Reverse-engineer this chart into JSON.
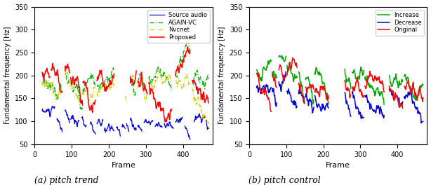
{
  "fig_width": 6.14,
  "fig_height": 2.64,
  "dpi": 100,
  "subplot_a": {
    "caption": "(a) pitch trend",
    "xlabel": "Frame",
    "ylabel": "Fundamental frequency [Hz]",
    "ylim": [
      50,
      350
    ],
    "yticks": [
      50,
      100,
      150,
      200,
      250,
      300,
      350
    ],
    "xlim": [
      0,
      480
    ],
    "xticks": [
      0,
      100,
      200,
      300,
      400
    ],
    "legend": [
      "Source audio",
      "AGAIN-VC",
      "Nvcnet",
      "Proposed"
    ],
    "colors": {
      "source": "#0000dd",
      "again": "#00aa00",
      "nvcnet": "#cccc00",
      "proposed": "#ff0000"
    }
  },
  "subplot_b": {
    "caption": "(b) pitch control",
    "xlabel": "Frame",
    "ylabel": "Fundamental frequency [Hz]",
    "ylim": [
      50,
      350
    ],
    "yticks": [
      50,
      100,
      150,
      200,
      250,
      300,
      350
    ],
    "xlim": [
      0,
      480
    ],
    "xticks": [
      0,
      100,
      200,
      300,
      400
    ],
    "legend": [
      "Increase",
      "Decrease",
      "Original"
    ],
    "colors": {
      "increase": "#00aa00",
      "decrease": "#0000dd",
      "original": "#ff0000"
    }
  }
}
